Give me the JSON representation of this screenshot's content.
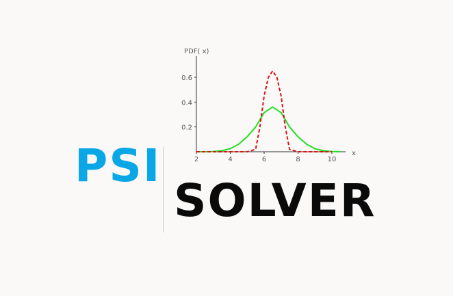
{
  "logo": {
    "psi_text": "PSI",
    "solver_text": "SOLVER",
    "psi_color": "#0aa7e6",
    "solver_color": "#0a0a0a"
  },
  "chart_data": {
    "type": "line",
    "ylabel": "PDF( x)",
    "xlabel": "x",
    "xlim": [
      2,
      11
    ],
    "ylim": [
      0,
      0.75
    ],
    "x_ticks": [
      2,
      4,
      6,
      8,
      10
    ],
    "y_ticks": [
      0.2,
      0.4,
      0.6
    ],
    "x_tick_labels": [
      "2",
      "4",
      "6",
      "8",
      "10"
    ],
    "y_tick_labels": [
      "0.2",
      "0.4",
      "0.6"
    ],
    "grid": false,
    "series": [
      {
        "style": "solid",
        "color": "#22dd22",
        "x": [
          2,
          2.5,
          3,
          3.5,
          4,
          4.5,
          5,
          5.5,
          6,
          6.5,
          7,
          7.5,
          8,
          8.5,
          9,
          9.5,
          10,
          10.5
        ],
        "y": [
          0.0,
          0.0,
          0.002,
          0.008,
          0.025,
          0.061,
          0.121,
          0.199,
          0.315,
          0.36,
          0.315,
          0.199,
          0.121,
          0.061,
          0.025,
          0.008,
          0.002,
          0.0
        ]
      },
      {
        "style": "dashed",
        "color": "#dd1111",
        "x": [
          2,
          3,
          4,
          5,
          5.5,
          5.75,
          6,
          6.25,
          6.5,
          6.75,
          7,
          7.25,
          7.5,
          8,
          9,
          10
        ],
        "y": [
          0.0,
          0.0,
          0.0,
          0.0,
          0.02,
          0.2,
          0.45,
          0.6,
          0.65,
          0.6,
          0.45,
          0.2,
          0.02,
          0.0,
          0.0,
          0.0
        ]
      }
    ]
  }
}
